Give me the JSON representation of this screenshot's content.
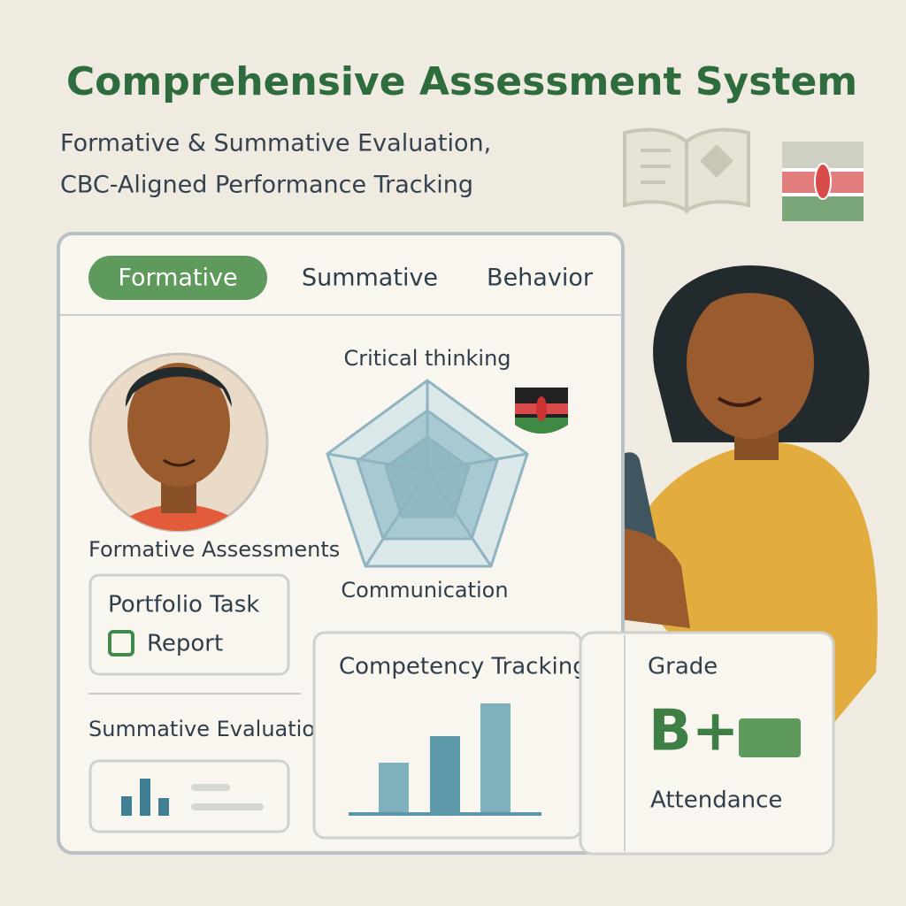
{
  "header": {
    "title": "Comprehensive Assessment System",
    "subtitle_lines": [
      "Formative & Summative Evaluation,",
      "CBC-Aligned Performance Tracking"
    ]
  },
  "tabs": [
    "Formative",
    "Summative",
    "Behavior"
  ],
  "radar": {
    "labels": [
      "Critical thinking",
      "Communication"
    ]
  },
  "formative": {
    "title": "Formative Assessments",
    "card_title": "Portfolio Task",
    "card_action": "Report"
  },
  "summative": {
    "title": "Summative Evaluation"
  },
  "competency": {
    "title": "Competency Tracking"
  },
  "grade": {
    "title": "Grade",
    "value": "B+",
    "attendance": "Attendance"
  }
}
